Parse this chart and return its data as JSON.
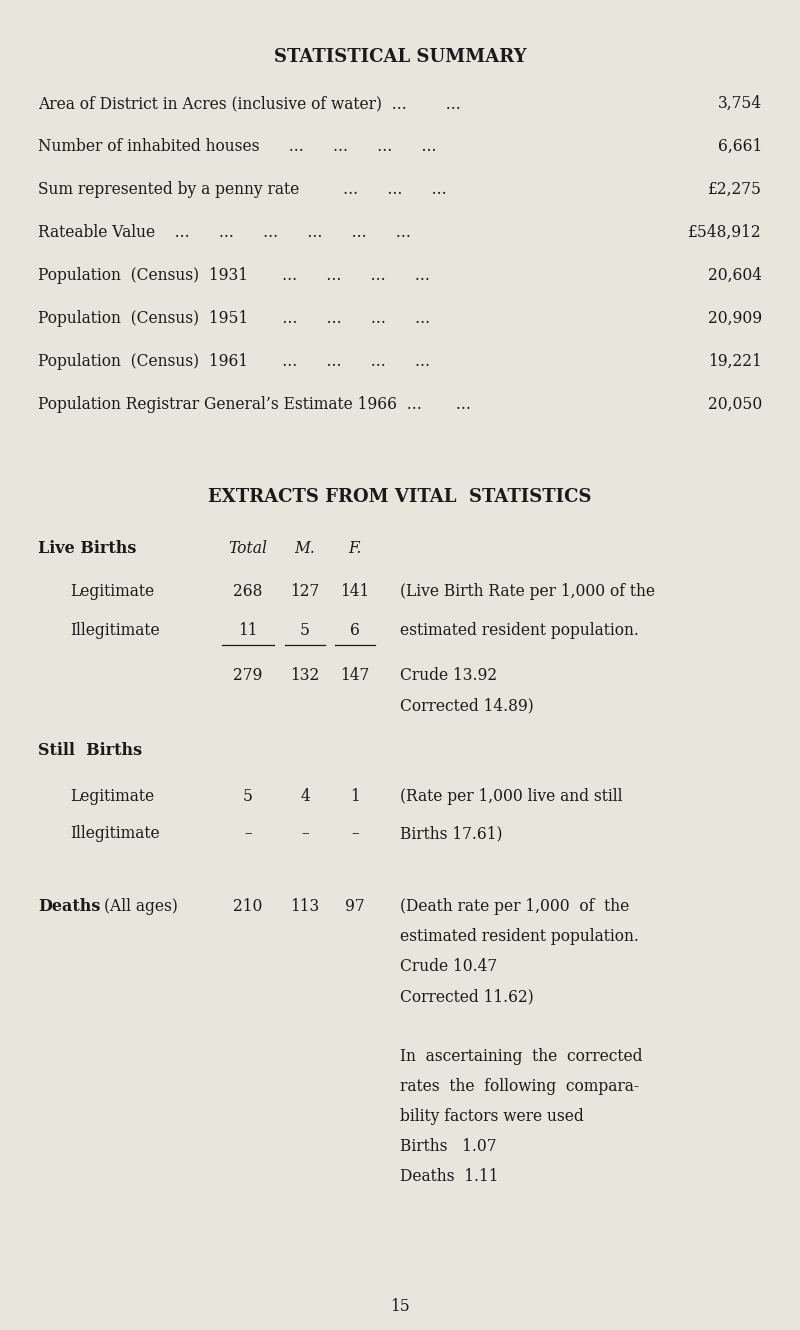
{
  "bg_color": "#e8e5dc",
  "text_color": "#1a1a1a",
  "title1": "STATISTICAL SUMMARY",
  "title2": "EXTRACTS FROM VITAL  STAƗISTICS",
  "summary_left": [
    "Area of District in Acres (inclusive of water)  ...        ...  ",
    "Number of inhabited houses      ...      ...      ...      ...  ",
    "Sum represented by a penny rate         ...      ...      ...  ",
    "Rateable Value    ...      ...      ...      ...      ...      ...  ",
    "Population  (Census)  1931       ...      ...      ...      ...  ",
    "Population  (Census)  1951       ...      ...      ...      ...  ",
    "Population  (Census)  1961       ...      ...      ...      ...  ",
    "Population Registrar General’s Estimate 1966  ...       ...  "
  ],
  "summary_right": [
    "3,754",
    "6,661",
    "£2,275",
    "£548,912",
    "20,604",
    "20,909",
    "19,221",
    "20,050"
  ],
  "page_number": "15",
  "fs_title": 13.0,
  "fs_body": 11.2,
  "fs_body_bold": 11.5
}
